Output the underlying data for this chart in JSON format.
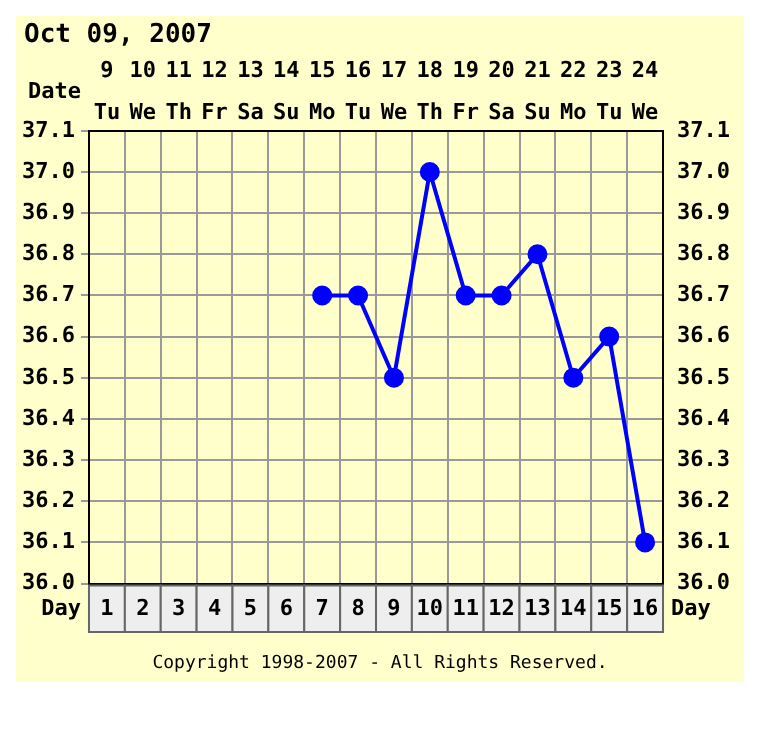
{
  "chart_data": {
    "type": "line",
    "title": "Oct 09, 2007",
    "categories": [
      "1",
      "2",
      "3",
      "4",
      "5",
      "6",
      "7",
      "8",
      "9",
      "10",
      "11",
      "12",
      "13",
      "14",
      "15",
      "16"
    ],
    "series": [
      {
        "color": "#0000ff",
        "values": [
          null,
          null,
          null,
          null,
          null,
          null,
          36.7,
          36.7,
          36.5,
          37.0,
          36.7,
          36.7,
          36.8,
          36.5,
          36.6,
          36.1
        ]
      }
    ],
    "xlabel": "Day",
    "x2label": "Date",
    "x2lim": [
      8.5,
      24.5
    ],
    "x2ticks": [
      9,
      10,
      11,
      12,
      13,
      14,
      15,
      16,
      17,
      18,
      19,
      20,
      21,
      22,
      23,
      24
    ],
    "ylim": [
      36.0,
      37.1
    ],
    "yticks": [
      {
        "value": 36.0,
        "label": "36.0"
      },
      36.1,
      36.2,
      36.3,
      36.4,
      36.5,
      36.6,
      36.7,
      36.8,
      36.9,
      {
        "value": 37.0,
        "label": "37.0"
      },
      37.1
    ],
    "y2lim": [
      36.0,
      37.1
    ],
    "y2ticks": [
      {
        "value": 36.0,
        "label": "36.0"
      },
      36.1,
      36.2,
      36.3,
      36.4,
      36.5,
      36.6,
      36.7,
      36.8,
      36.9,
      {
        "value": 37.0,
        "label": "37.0"
      },
      37.1
    ],
    "grid": true,
    "marker": "circle",
    "line_style": "solid",
    "legend": false,
    "annotations": [
      "Tu",
      "We",
      "Th",
      "Fr",
      "Sa",
      "Su",
      "Mo",
      "Tu",
      "We",
      "Th",
      "Fr",
      "Sa",
      "Su",
      "Mo",
      "Tu",
      "We",
      "Copyright 1998-2007 - All Rights Reserved."
    ]
  }
}
